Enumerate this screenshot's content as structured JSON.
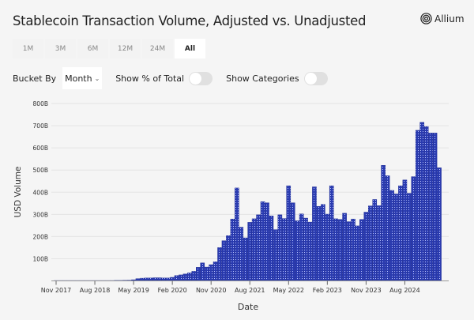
{
  "header": {
    "title": "Stablecoin Transaction Volume, Adjusted vs. Unadjusted",
    "logo_text": "Allium"
  },
  "ranges": [
    {
      "label": "1M"
    },
    {
      "label": "3M"
    },
    {
      "label": "6M"
    },
    {
      "label": "12M"
    },
    {
      "label": "24M"
    },
    {
      "label": "All",
      "active": true
    }
  ],
  "controls": {
    "bucket_label": "Bucket By",
    "bucket_value": "Month",
    "pct_label": "Show % of Total",
    "pct_on": false,
    "cat_label": "Show Categories",
    "cat_on": false
  },
  "colors": {
    "bar_fill": "#4a5fd6",
    "bar_stroke": "#1e2c94",
    "grid": "#e4e4e4"
  },
  "chart_data": {
    "type": "bar",
    "xlabel": "Date",
    "ylabel": "USD Volume",
    "ylim": [
      0,
      800
    ],
    "yticks": [
      "100B",
      "200B",
      "300B",
      "400B",
      "500B",
      "600B",
      "700B",
      "800B"
    ],
    "ytick_values": [
      100,
      200,
      300,
      400,
      500,
      600,
      700,
      800
    ],
    "xticks": [
      "Nov 2017",
      "Aug 2018",
      "May 2019",
      "Feb 2020",
      "Nov 2020",
      "Aug 2021",
      "May 2022",
      "Feb 2023",
      "Nov 2023",
      "Aug 2024"
    ],
    "xtick_month_index": [
      0,
      9,
      18,
      27,
      36,
      45,
      54,
      63,
      72,
      81
    ],
    "start_month": "Nov 2017",
    "unit": "B USD",
    "grid": true,
    "values": [
      0.3,
      0.3,
      0.3,
      0.3,
      0.4,
      0.4,
      0.5,
      0.5,
      0.6,
      0.7,
      0.8,
      1,
      1,
      1.5,
      2,
      2,
      2.5,
      3,
      5,
      10,
      12,
      13,
      13,
      14,
      14,
      13,
      13,
      16,
      24,
      27,
      31,
      36,
      43,
      61,
      81,
      62,
      73,
      86,
      150,
      181,
      204,
      279,
      419,
      242,
      194,
      264,
      280,
      298,
      357,
      352,
      293,
      231,
      298,
      281,
      429,
      352,
      271,
      302,
      283,
      265,
      424,
      336,
      345,
      301,
      429,
      280,
      277,
      305,
      267,
      279,
      248,
      277,
      310,
      338,
      367,
      339,
      521,
      474,
      408,
      392,
      429,
      455,
      395,
      470,
      679,
      715,
      696,
      667,
      667,
      510
    ]
  }
}
